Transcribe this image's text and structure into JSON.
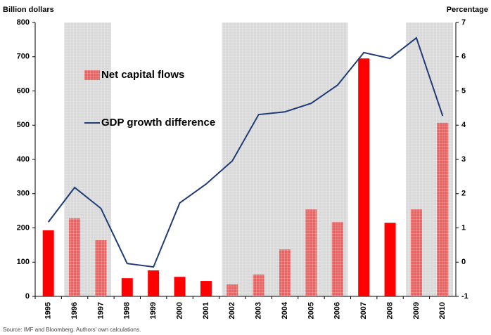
{
  "chart_data": {
    "type": "bar-line",
    "y_label": "Billion dollars",
    "y2_label": "Percentage",
    "source": "Source: IMF and Bloomberg. Authors' own calculations.",
    "categories": [
      "1995",
      "1996",
      "1997",
      "1998",
      "1999",
      "2000",
      "2001",
      "2002",
      "2003",
      "2004",
      "2005",
      "2006",
      "2007",
      "2008",
      "2009",
      "2010"
    ],
    "shaded": [
      [
        "1996",
        "1997"
      ],
      [
        "2002",
        "2006"
      ],
      [
        "2009",
        "2010"
      ]
    ],
    "series": [
      {
        "name": "Net capital flows",
        "type": "bar",
        "color": "#ff0000",
        "values": [
          193,
          228,
          164,
          53,
          76,
          57,
          45,
          35,
          64,
          137,
          254,
          217,
          695,
          215,
          254,
          507
        ]
      },
      {
        "name": "GDP growth difference",
        "type": "line",
        "axis": "y2",
        "color": "#1f3c78",
        "values": [
          1.17,
          2.18,
          1.57,
          -0.04,
          -0.14,
          1.73,
          2.28,
          2.96,
          4.31,
          4.39,
          4.64,
          5.17,
          6.12,
          5.95,
          6.55,
          4.27
        ]
      }
    ],
    "ylim": [
      0,
      800
    ],
    "yticks": [
      0,
      100,
      200,
      300,
      400,
      500,
      600,
      700,
      800
    ],
    "y2lim": [
      -1,
      7
    ],
    "y2ticks": [
      -1,
      0,
      1,
      2,
      3,
      4,
      5,
      6,
      7
    ],
    "legend": "upper left"
  }
}
